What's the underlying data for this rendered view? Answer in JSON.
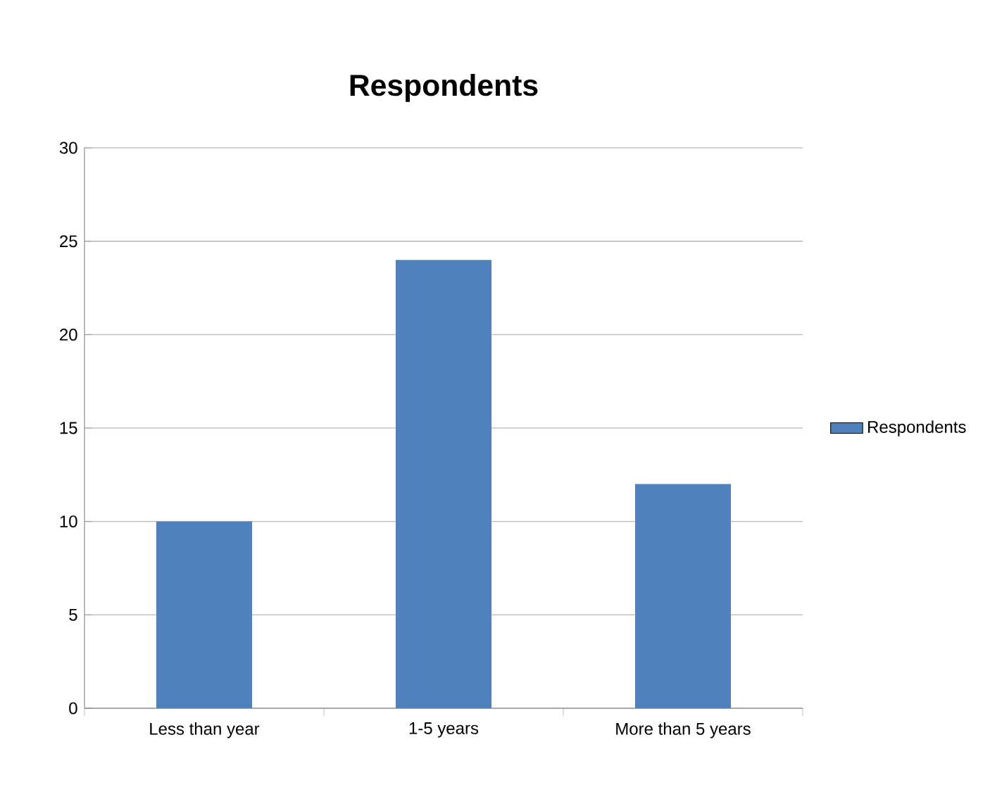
{
  "chart_data": {
    "type": "bar",
    "title": "Respondents",
    "categories": [
      "Less than year",
      "1-5 years",
      "More than 5 years"
    ],
    "series": [
      {
        "name": "Respondents",
        "color": "#4f81bd",
        "values": [
          10,
          24,
          12
        ]
      }
    ],
    "ylim": [
      0,
      30
    ],
    "yticks": [
      0,
      5,
      10,
      15,
      20,
      25,
      30
    ],
    "grid": "y",
    "legend": "right"
  }
}
